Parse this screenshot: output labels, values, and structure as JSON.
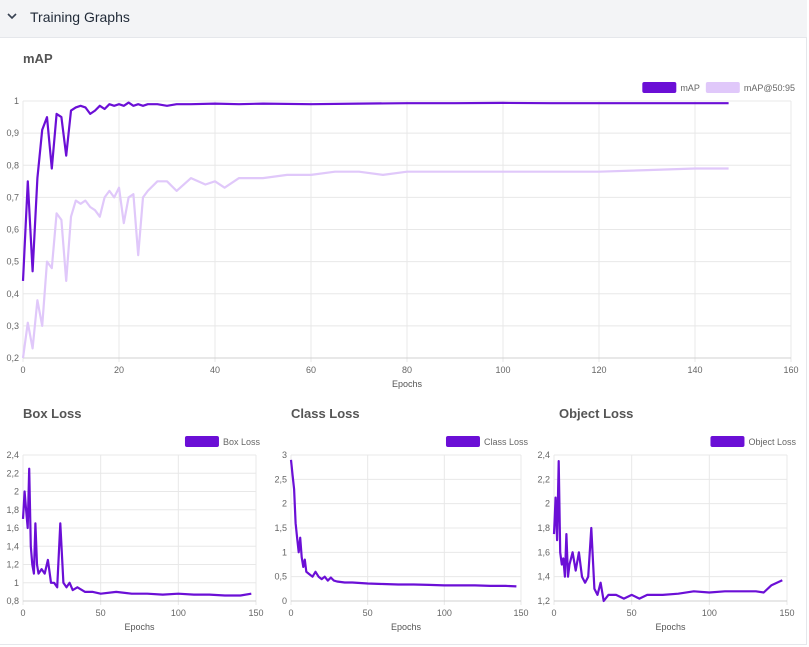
{
  "header": {
    "title": "Training Graphs",
    "icon": "chevron-down-icon"
  },
  "colors": {
    "primary": "#6B0FD6",
    "secondary": "#E0C8FA",
    "grid": "#e8e8e8"
  },
  "chart_data": [
    {
      "id": "map",
      "type": "line",
      "title": "mAP",
      "xlabel": "Epochs",
      "ylabel": "",
      "xlim": [
        0,
        160
      ],
      "ylim": [
        0.2,
        1.0
      ],
      "xticks": [
        0,
        20,
        40,
        60,
        80,
        100,
        120,
        140,
        160
      ],
      "yticks": [
        0.2,
        0.3,
        0.4,
        0.5,
        0.6,
        0.7,
        0.8,
        0.9,
        1.0
      ],
      "decimal": ",",
      "grid": true,
      "legend": "top-right",
      "series": [
        {
          "name": "mAP",
          "color": "#6B0FD6",
          "x": [
            0,
            1,
            2,
            3,
            4,
            5,
            6,
            7,
            8,
            9,
            10,
            11,
            12,
            13,
            14,
            15,
            16,
            17,
            18,
            19,
            20,
            21,
            22,
            23,
            24,
            25,
            26,
            28,
            30,
            32,
            35,
            40,
            45,
            50,
            60,
            70,
            80,
            90,
            100,
            110,
            120,
            130,
            140,
            147
          ],
          "y": [
            0.44,
            0.75,
            0.47,
            0.76,
            0.91,
            0.95,
            0.79,
            0.96,
            0.95,
            0.83,
            0.97,
            0.98,
            0.985,
            0.98,
            0.96,
            0.97,
            0.985,
            0.975,
            0.99,
            0.985,
            0.99,
            0.985,
            0.995,
            0.985,
            0.99,
            0.985,
            0.99,
            0.99,
            0.985,
            0.99,
            0.99,
            0.992,
            0.99,
            0.992,
            0.99,
            0.992,
            0.993,
            0.993,
            0.994,
            0.993,
            0.993,
            0.993,
            0.993,
            0.993
          ]
        },
        {
          "name": "mAP@50:95",
          "color": "#E0C8FA",
          "x": [
            0,
            1,
            2,
            3,
            4,
            5,
            6,
            7,
            8,
            9,
            10,
            11,
            12,
            13,
            14,
            15,
            16,
            17,
            18,
            19,
            20,
            21,
            22,
            23,
            24,
            25,
            26,
            28,
            30,
            32,
            35,
            38,
            40,
            42,
            45,
            50,
            55,
            60,
            65,
            70,
            75,
            80,
            90,
            100,
            110,
            120,
            130,
            140,
            147
          ],
          "y": [
            0.2,
            0.31,
            0.23,
            0.38,
            0.3,
            0.5,
            0.48,
            0.65,
            0.63,
            0.44,
            0.64,
            0.69,
            0.68,
            0.69,
            0.67,
            0.66,
            0.64,
            0.7,
            0.72,
            0.7,
            0.73,
            0.62,
            0.7,
            0.71,
            0.52,
            0.7,
            0.72,
            0.75,
            0.75,
            0.72,
            0.76,
            0.74,
            0.75,
            0.73,
            0.76,
            0.76,
            0.77,
            0.77,
            0.78,
            0.78,
            0.77,
            0.78,
            0.78,
            0.78,
            0.78,
            0.78,
            0.785,
            0.79,
            0.79
          ]
        }
      ]
    },
    {
      "id": "box",
      "type": "line",
      "title": "Box Loss",
      "xlabel": "Epochs",
      "ylabel": "",
      "xlim": [
        0,
        150
      ],
      "ylim": [
        0.8,
        2.4
      ],
      "xticks": [
        0,
        50,
        100,
        150
      ],
      "yticks": [
        0.8,
        1.0,
        1.2,
        1.4,
        1.6,
        1.8,
        2.0,
        2.2,
        2.4
      ],
      "decimal": ",",
      "grid": true,
      "legend": "top-right",
      "series": [
        {
          "name": "Box Loss",
          "color": "#6B0FD6",
          "x": [
            0,
            1,
            2,
            3,
            4,
            5,
            6,
            7,
            8,
            9,
            10,
            12,
            14,
            16,
            18,
            20,
            22,
            24,
            26,
            28,
            30,
            32,
            35,
            40,
            45,
            50,
            60,
            70,
            80,
            90,
            100,
            110,
            120,
            130,
            140,
            147
          ],
          "y": [
            1.7,
            2.0,
            1.8,
            1.6,
            2.25,
            1.4,
            1.2,
            1.1,
            1.65,
            1.2,
            1.1,
            1.15,
            1.1,
            1.25,
            1.0,
            1.0,
            0.95,
            1.65,
            1.0,
            0.95,
            1.0,
            0.92,
            0.95,
            0.9,
            0.9,
            0.88,
            0.9,
            0.88,
            0.88,
            0.87,
            0.88,
            0.87,
            0.87,
            0.86,
            0.86,
            0.88
          ]
        }
      ]
    },
    {
      "id": "class",
      "type": "line",
      "title": "Class Loss",
      "xlabel": "Epochs",
      "ylabel": "",
      "xlim": [
        0,
        150
      ],
      "ylim": [
        0,
        3.0
      ],
      "xticks": [
        0,
        50,
        100,
        150
      ],
      "yticks": [
        0,
        0.5,
        1.0,
        1.5,
        2.0,
        2.5,
        3.0
      ],
      "decimal": ",",
      "grid": true,
      "legend": "top-right",
      "series": [
        {
          "name": "Class Loss",
          "color": "#6B0FD6",
          "x": [
            0,
            1,
            2,
            3,
            4,
            5,
            6,
            7,
            8,
            9,
            10,
            12,
            14,
            16,
            18,
            20,
            22,
            24,
            26,
            28,
            30,
            35,
            40,
            50,
            60,
            70,
            80,
            90,
            100,
            110,
            120,
            130,
            140,
            147
          ],
          "y": [
            2.9,
            2.6,
            2.3,
            1.6,
            1.3,
            1.0,
            1.3,
            0.9,
            0.7,
            0.85,
            0.6,
            0.55,
            0.5,
            0.6,
            0.5,
            0.45,
            0.5,
            0.42,
            0.48,
            0.42,
            0.4,
            0.38,
            0.38,
            0.36,
            0.35,
            0.34,
            0.34,
            0.33,
            0.32,
            0.32,
            0.32,
            0.31,
            0.31,
            0.3
          ]
        }
      ]
    },
    {
      "id": "object",
      "type": "line",
      "title": "Object Loss",
      "xlabel": "Epochs",
      "ylabel": "",
      "xlim": [
        0,
        150
      ],
      "ylim": [
        1.2,
        2.4
      ],
      "xticks": [
        0,
        50,
        100,
        150
      ],
      "yticks": [
        1.2,
        1.4,
        1.6,
        1.8,
        2.0,
        2.2,
        2.4
      ],
      "decimal": ",",
      "grid": true,
      "legend": "top-right",
      "series": [
        {
          "name": "Object Loss",
          "color": "#6B0FD6",
          "x": [
            0,
            1,
            2,
            3,
            4,
            5,
            6,
            7,
            8,
            9,
            10,
            12,
            14,
            16,
            18,
            20,
            22,
            24,
            26,
            28,
            30,
            32,
            35,
            40,
            45,
            50,
            55,
            60,
            70,
            80,
            90,
            100,
            110,
            120,
            130,
            135,
            140,
            147
          ],
          "y": [
            1.75,
            2.05,
            1.7,
            2.35,
            1.6,
            1.5,
            1.55,
            1.4,
            1.75,
            1.4,
            1.5,
            1.6,
            1.45,
            1.6,
            1.4,
            1.35,
            1.4,
            1.8,
            1.3,
            1.25,
            1.35,
            1.2,
            1.25,
            1.25,
            1.22,
            1.25,
            1.22,
            1.25,
            1.25,
            1.26,
            1.28,
            1.27,
            1.28,
            1.28,
            1.28,
            1.27,
            1.33,
            1.37
          ]
        }
      ]
    }
  ]
}
